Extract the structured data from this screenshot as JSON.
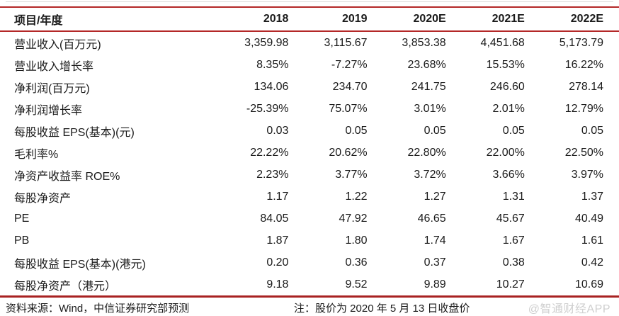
{
  "page": {
    "accent_color": "#b42828",
    "text_color": "#1a1a1a",
    "watermark_color": "#cfcfcf",
    "background": "#ffffff"
  },
  "table": {
    "header": {
      "label_col": "项目/年度",
      "year_cols": [
        "2018",
        "2019",
        "2020E",
        "2021E",
        "2022E"
      ]
    },
    "rows": [
      {
        "label": "营业收入(百万元)",
        "values": [
          "3,359.98",
          "3,115.67",
          "3,853.38",
          "4,451.68",
          "5,173.79"
        ]
      },
      {
        "label": "营业收入增长率",
        "values": [
          "8.35%",
          "-7.27%",
          "23.68%",
          "15.53%",
          "16.22%"
        ]
      },
      {
        "label": "净利润(百万元)",
        "values": [
          "134.06",
          "234.70",
          "241.75",
          "246.60",
          "278.14"
        ]
      },
      {
        "label": "净利润增长率",
        "values": [
          "-25.39%",
          "75.07%",
          "3.01%",
          "2.01%",
          "12.79%"
        ]
      },
      {
        "label": "每股收益 EPS(基本)(元)",
        "values": [
          "0.03",
          "0.05",
          "0.05",
          "0.05",
          "0.05"
        ]
      },
      {
        "label": "毛利率%",
        "values": [
          "22.22%",
          "20.62%",
          "22.80%",
          "22.00%",
          "22.50%"
        ]
      },
      {
        "label": "净资产收益率 ROE%",
        "values": [
          "2.23%",
          "3.77%",
          "3.72%",
          "3.66%",
          "3.97%"
        ]
      },
      {
        "label": "每股净资产",
        "values": [
          "1.17",
          "1.22",
          "1.27",
          "1.31",
          "1.37"
        ]
      },
      {
        "label": "PE",
        "values": [
          "84.05",
          "47.92",
          "46.65",
          "45.67",
          "40.49"
        ]
      },
      {
        "label": "PB",
        "values": [
          "1.87",
          "1.80",
          "1.74",
          "1.67",
          "1.61"
        ]
      },
      {
        "label": "每股收益 EPS(基本)(港元)",
        "values": [
          "0.20",
          "0.36",
          "0.37",
          "0.38",
          "0.42"
        ]
      },
      {
        "label": "每股净资产（港元）",
        "values": [
          "9.18",
          "9.52",
          "9.89",
          "10.27",
          "10.69"
        ]
      }
    ]
  },
  "footer": {
    "source": "资料来源：Wind，中信证券研究部预测",
    "note": "注：股价为 2020 年 5 月 13 日收盘价",
    "watermark": "@智通财经APP"
  },
  "chart_data": {
    "type": "table",
    "columns": [
      "项目/年度",
      "2018",
      "2019",
      "2020E",
      "2021E",
      "2022E"
    ],
    "rows": [
      [
        "营业收入(百万元)",
        "3,359.98",
        "3,115.67",
        "3,853.38",
        "4,451.68",
        "5,173.79"
      ],
      [
        "营业收入增长率",
        "8.35%",
        "-7.27%",
        "23.68%",
        "15.53%",
        "16.22%"
      ],
      [
        "净利润(百万元)",
        "134.06",
        "234.70",
        "241.75",
        "246.60",
        "278.14"
      ],
      [
        "净利润增长率",
        "-25.39%",
        "75.07%",
        "3.01%",
        "2.01%",
        "12.79%"
      ],
      [
        "每股收益 EPS(基本)(元)",
        "0.03",
        "0.05",
        "0.05",
        "0.05",
        "0.05"
      ],
      [
        "毛利率%",
        "22.22%",
        "20.62%",
        "22.80%",
        "22.00%",
        "22.50%"
      ],
      [
        "净资产收益率 ROE%",
        "2.23%",
        "3.77%",
        "3.72%",
        "3.66%",
        "3.97%"
      ],
      [
        "每股净资产",
        "1.17",
        "1.22",
        "1.27",
        "1.31",
        "1.37"
      ],
      [
        "PE",
        "84.05",
        "47.92",
        "46.65",
        "45.67",
        "40.49"
      ],
      [
        "PB",
        "1.87",
        "1.80",
        "1.74",
        "1.67",
        "1.61"
      ],
      [
        "每股收益 EPS(基本)(港元)",
        "0.20",
        "0.36",
        "0.37",
        "0.38",
        "0.42"
      ],
      [
        "每股净资产（港元）",
        "9.18",
        "9.52",
        "9.89",
        "10.27",
        "10.69"
      ]
    ],
    "notes": [
      "资料来源：Wind，中信证券研究部预测",
      "注：股价为 2020 年 5 月 13 日收盘价"
    ]
  }
}
